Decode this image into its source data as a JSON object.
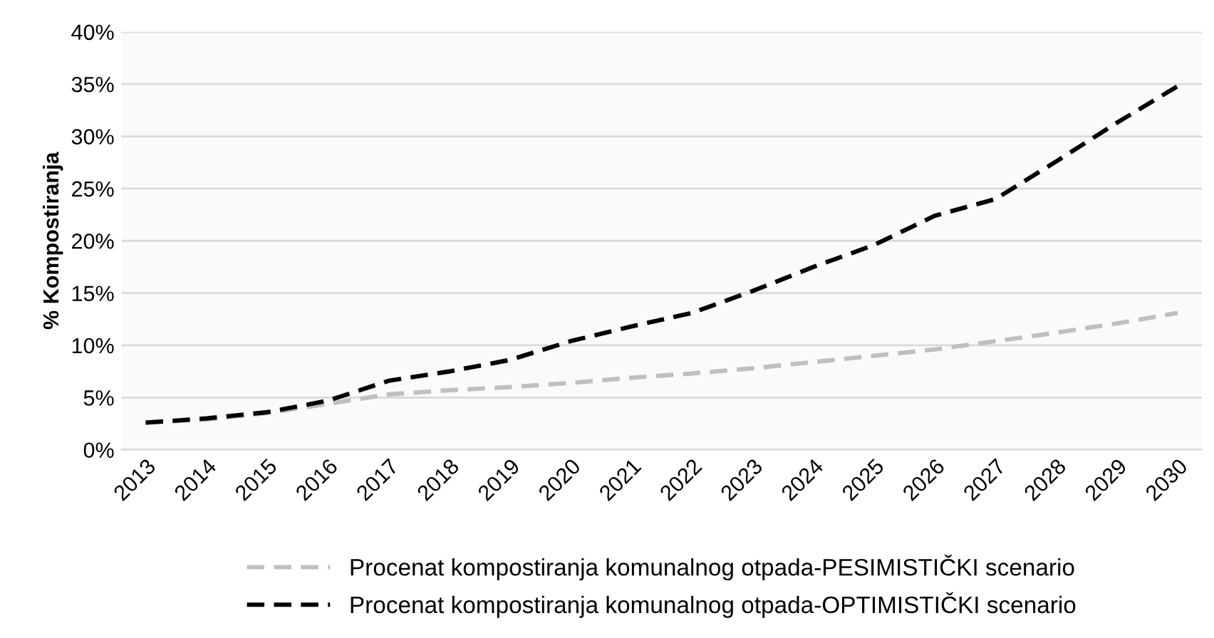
{
  "chart_data": {
    "type": "line",
    "ylabel": "% Kompostiranja",
    "categories": [
      "2013",
      "2014",
      "2015",
      "2016",
      "2017",
      "2018",
      "2019",
      "2020",
      "2021",
      "2022",
      "2023",
      "2024",
      "2025",
      "2026",
      "2027",
      "2028",
      "2029",
      "2030"
    ],
    "series": [
      {
        "name": "Procenat kompostiranja komunalnog otpada-PESIMISTIČKI scenario",
        "color": "#bfbfbf",
        "values": [
          2.6,
          2.9,
          3.5,
          4.4,
          5.3,
          5.7,
          6.0,
          6.4,
          6.9,
          7.3,
          7.8,
          8.4,
          9.0,
          9.6,
          10.4,
          11.2,
          12.1,
          13.1
        ]
      },
      {
        "name": "Procenat kompostiranja komunalnog otpada-OPTIMISTIČKI scenario",
        "color": "#000000",
        "values": [
          2.6,
          3.0,
          3.6,
          4.7,
          6.6,
          7.5,
          8.6,
          10.4,
          11.8,
          13.1,
          15.2,
          17.5,
          19.6,
          22.4,
          24.0,
          27.6,
          31.3,
          34.8
        ]
      }
    ],
    "ylim": [
      0,
      40
    ],
    "yticks": [
      {
        "value": 0,
        "label": "0%"
      },
      {
        "value": 5,
        "label": "5%"
      },
      {
        "value": 10,
        "label": "10%"
      },
      {
        "value": 15,
        "label": "15%"
      },
      {
        "value": 20,
        "label": "20%"
      },
      {
        "value": 25,
        "label": "25%"
      },
      {
        "value": 30,
        "label": "30%"
      },
      {
        "value": 35,
        "label": "35%"
      },
      {
        "value": 40,
        "label": "40%"
      }
    ],
    "grid": "y",
    "legend": "bottom",
    "line_style": "dashed",
    "marker": "none"
  }
}
